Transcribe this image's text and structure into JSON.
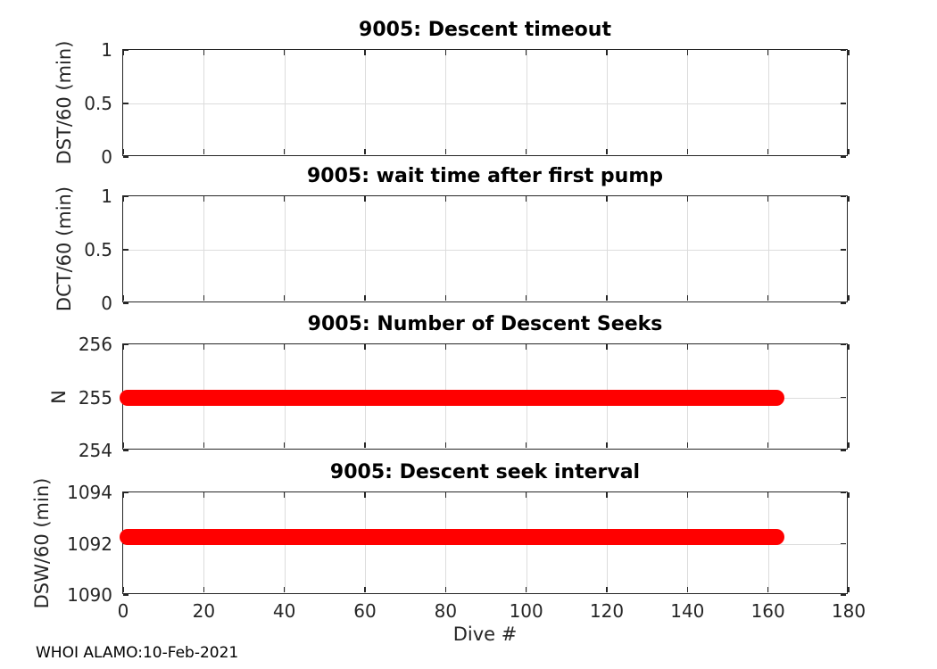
{
  "figure": {
    "background": "#ffffff"
  },
  "colors": {
    "data_red": "#ff0000",
    "grid": "#dcdcdc",
    "axis": "#262626",
    "title_text": "#000000"
  },
  "footer": {
    "text": "WHOI ALAMO:10-Feb-2021"
  },
  "chart_data": [
    {
      "type": "line",
      "title": "9005: Descent timeout",
      "ylabel": "DST/60 (min)",
      "xlim": [
        0,
        180
      ],
      "xticks": [
        0,
        20,
        40,
        60,
        80,
        100,
        120,
        140,
        160,
        180
      ],
      "ylim": [
        0,
        1
      ],
      "yticks": [
        0,
        0.5,
        1
      ],
      "ytick_labels": [
        "0",
        "0.5",
        "1"
      ],
      "grid": true,
      "show_xtick_labels": false,
      "series": []
    },
    {
      "type": "line",
      "title": "9005: wait time after first pump",
      "ylabel": "DCT/60 (min)",
      "xlim": [
        0,
        180
      ],
      "xticks": [
        0,
        20,
        40,
        60,
        80,
        100,
        120,
        140,
        160,
        180
      ],
      "ylim": [
        0,
        1
      ],
      "yticks": [
        0,
        0.5,
        1
      ],
      "ytick_labels": [
        "0",
        "0.5",
        "1"
      ],
      "grid": true,
      "show_xtick_labels": false,
      "series": []
    },
    {
      "type": "line",
      "title": "9005: Number of Descent Seeks",
      "ylabel": "N",
      "xlim": [
        0,
        180
      ],
      "xticks": [
        0,
        20,
        40,
        60,
        80,
        100,
        120,
        140,
        160,
        180
      ],
      "ylim": [
        254,
        256
      ],
      "yticks": [
        254,
        255,
        256
      ],
      "ytick_labels": [
        "254",
        "255",
        "256"
      ],
      "grid": true,
      "show_xtick_labels": false,
      "series": [
        {
          "name": "N",
          "color": "#ff0000",
          "marker": "dot",
          "x_start": 1,
          "x_end": 162,
          "y_value": 255
        }
      ]
    },
    {
      "type": "line",
      "title": "9005: Descent seek interval",
      "ylabel": "DSW/60 (min)",
      "xlabel": "Dive #",
      "xlim": [
        0,
        180
      ],
      "xticks": [
        0,
        20,
        40,
        60,
        80,
        100,
        120,
        140,
        160,
        180
      ],
      "xtick_labels": [
        "0",
        "20",
        "40",
        "60",
        "80",
        "100",
        "120",
        "140",
        "160",
        "180"
      ],
      "ylim": [
        1090,
        1094
      ],
      "yticks": [
        1090,
        1092,
        1094
      ],
      "ytick_labels": [
        "1090",
        "1092",
        "1094"
      ],
      "grid": true,
      "show_xtick_labels": true,
      "series": [
        {
          "name": "DSW",
          "color": "#ff0000",
          "marker": "dot",
          "x_start": 1,
          "x_end": 162,
          "y_value": 1092.25
        }
      ]
    }
  ]
}
